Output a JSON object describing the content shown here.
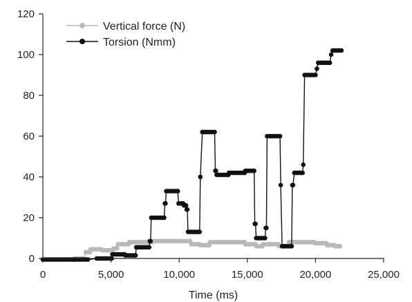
{
  "chart_data": {
    "type": "line",
    "xlabel": "Time (ms)",
    "ylabel": "",
    "xlim": [
      0,
      25000
    ],
    "ylim": [
      0,
      120
    ],
    "x_ticks": [
      "0",
      "5,000",
      "10,000",
      "15,000",
      "20,000",
      "25,000"
    ],
    "y_ticks": [
      "0",
      "20",
      "40",
      "60",
      "80",
      "100",
      "120"
    ],
    "x_tick_values": [
      0,
      5000,
      10000,
      15000,
      20000,
      25000
    ],
    "y_tick_values": [
      0,
      20,
      40,
      60,
      80,
      100,
      120
    ],
    "grid": false,
    "legend_position": "top-left",
    "series": [
      {
        "name": "Vertical force (N)",
        "color": "#b9b9bd",
        "step": 120,
        "segments": [
          [
            0,
            2300,
            -0.5
          ],
          [
            2350,
            3000,
            0
          ],
          [
            3150,
            3450,
            3
          ],
          [
            3500,
            4300,
            4.5
          ],
          [
            4350,
            5150,
            4
          ],
          [
            5200,
            5450,
            5
          ],
          [
            5500,
            6300,
            7
          ],
          [
            6350,
            8000,
            8
          ],
          [
            8050,
            10800,
            8.5
          ],
          [
            10900,
            11500,
            7
          ],
          [
            11550,
            12200,
            6.5
          ],
          [
            12250,
            14800,
            8
          ],
          [
            14850,
            15600,
            7
          ],
          [
            15650,
            16100,
            6
          ],
          [
            16150,
            17300,
            7
          ],
          [
            17350,
            18000,
            6
          ],
          [
            18050,
            19900,
            8
          ],
          [
            19950,
            20800,
            7.5
          ],
          [
            20850,
            21400,
            6.5
          ],
          [
            21450,
            21800,
            6
          ]
        ]
      },
      {
        "name": "Torsion (Nmm)",
        "color": "#111111",
        "step": 140,
        "segments": [
          [
            0,
            2300,
            -0.5
          ],
          [
            2300,
            3300,
            -0.5
          ],
          [
            3950,
            5050,
            0
          ],
          [
            5100,
            6000,
            2
          ],
          [
            6050,
            6800,
            1.5
          ],
          [
            6850,
            7800,
            5.5
          ],
          [
            7850,
            7900,
            8.5
          ],
          [
            7950,
            8900,
            20
          ],
          [
            8950,
            9000,
            27
          ],
          [
            9050,
            9900,
            33
          ],
          [
            9950,
            10300,
            27
          ],
          [
            10350,
            10500,
            26
          ],
          [
            10550,
            10600,
            24
          ],
          [
            10650,
            11500,
            13
          ],
          [
            11550,
            11550,
            40
          ],
          [
            11700,
            12600,
            62
          ],
          [
            12650,
            12700,
            43
          ],
          [
            12750,
            13600,
            41
          ],
          [
            13650,
            14800,
            42
          ],
          [
            14850,
            15500,
            43
          ],
          [
            15550,
            15600,
            17
          ],
          [
            15650,
            16300,
            10
          ],
          [
            16350,
            16400,
            15
          ],
          [
            16450,
            17400,
            60
          ],
          [
            17450,
            17450,
            36
          ],
          [
            17550,
            18250,
            6
          ],
          [
            18300,
            18350,
            36
          ],
          [
            18450,
            19050,
            42
          ],
          [
            19100,
            19100,
            46
          ],
          [
            19200,
            20000,
            90
          ],
          [
            20100,
            20100,
            93
          ],
          [
            20200,
            21050,
            96
          ],
          [
            21150,
            21150,
            100
          ],
          [
            21250,
            21900,
            102
          ]
        ]
      }
    ]
  }
}
